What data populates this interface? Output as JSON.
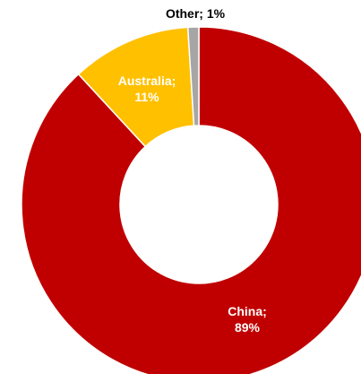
{
  "chart_data": {
    "type": "pie",
    "variant": "donut",
    "title": "",
    "slices": [
      {
        "name": "China",
        "value": 89,
        "label_line1": "China;",
        "label_line2": "89%",
        "color": "#c00000",
        "label_color": "#ffffff"
      },
      {
        "name": "Australia",
        "value": 11,
        "label_line1": "Australia;",
        "label_line2": "11%",
        "color": "#ffc000",
        "label_color": "#ffffff"
      },
      {
        "name": "Other",
        "value": 1,
        "label_line1": "Other; 1%",
        "label_line2": "",
        "color": "#a6a6a6",
        "label_color": "#000000"
      }
    ],
    "legend": "none",
    "unit": "%"
  }
}
